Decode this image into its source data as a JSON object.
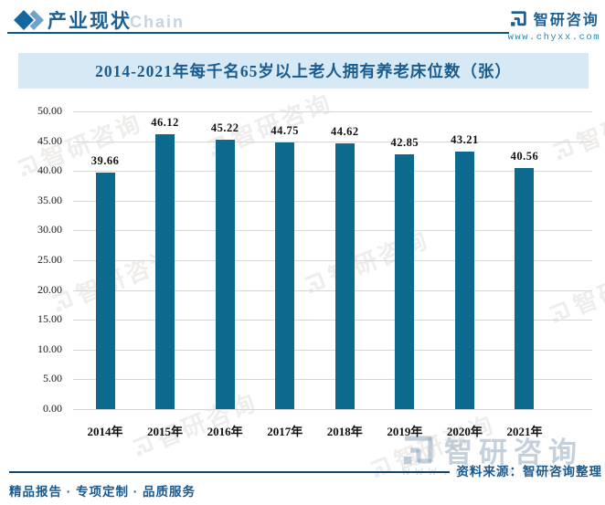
{
  "header": {
    "section_title": "产业现状",
    "chain_watermark": "Chain",
    "logo_text": "智研咨询",
    "logo_url": "www.chyxx.com"
  },
  "chart_data": {
    "type": "bar",
    "title": "2014-2021年每千名65岁以上老人拥有养老床位数（张）",
    "categories": [
      "2014年",
      "2015年",
      "2016年",
      "2017年",
      "2018年",
      "2019年",
      "2020年",
      "2021年"
    ],
    "values": [
      39.66,
      46.12,
      45.22,
      44.75,
      44.62,
      42.85,
      43.21,
      40.56
    ],
    "xlabel": "",
    "ylabel": "",
    "ylim": [
      0,
      50
    ],
    "ytick_step": 5,
    "ytick_decimals": 2,
    "grid": true,
    "legend": "none",
    "bar_color": "#0c6a8e"
  },
  "watermark": {
    "text": "智研咨询",
    "url": "www.chyxx.com"
  },
  "footer": {
    "left_text": "精品报告 · 专项定制 · 品质服务",
    "source_text": "资料来源：智研咨询整理"
  }
}
